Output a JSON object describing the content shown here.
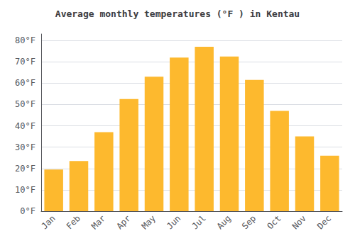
{
  "chart_data": {
    "type": "bar",
    "title": "Average monthly temperatures (°F ) in Kentau",
    "categories": [
      "Jan",
      "Feb",
      "Mar",
      "Apr",
      "May",
      "Jun",
      "Jul",
      "Aug",
      "Sep",
      "Oct",
      "Nov",
      "Dec"
    ],
    "values": [
      19.5,
      23.5,
      37.0,
      52.5,
      63.0,
      72.0,
      77.0,
      72.5,
      61.5,
      47.0,
      35.0,
      26.0
    ],
    "color": "#FDB92E",
    "ylim": [
      0,
      83
    ],
    "yticks": [
      {
        "value": 0,
        "label": "0°F"
      },
      {
        "value": 10,
        "label": "10°F"
      },
      {
        "value": 20,
        "label": "20°F"
      },
      {
        "value": 30,
        "label": "30°F"
      },
      {
        "value": 40,
        "label": "40°F"
      },
      {
        "value": 50,
        "label": "50°F"
      },
      {
        "value": 60,
        "label": "60°F"
      },
      {
        "value": 70,
        "label": "70°F"
      },
      {
        "value": 80,
        "label": "80°F"
      }
    ],
    "grid": true
  }
}
